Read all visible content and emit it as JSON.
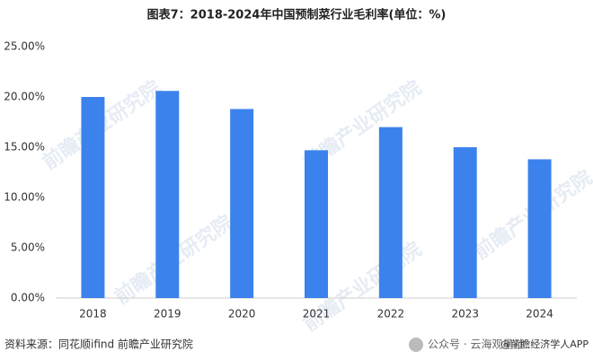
{
  "chart_data": {
    "type": "bar",
    "title": "图表7：2018-2024年中国预制菜行业毛利率(单位：%)",
    "categories": [
      "2018",
      "2019",
      "2020",
      "2021",
      "2022",
      "2023",
      "2024"
    ],
    "values": [
      20.0,
      20.6,
      18.8,
      14.7,
      17.0,
      15.0,
      13.8
    ],
    "color": "#3b82ec",
    "ylim": [
      0,
      25
    ],
    "yticks": [
      {
        "value": 0,
        "label": "0.00%"
      },
      {
        "value": 5,
        "label": "5.00%"
      },
      {
        "value": 10,
        "label": "10.00%"
      },
      {
        "value": 15,
        "label": "15.00%"
      },
      {
        "value": 20,
        "label": "20.00%"
      },
      {
        "value": 25,
        "label": "25.00%"
      }
    ],
    "grid": false,
    "source": "资料来源：同花顺ifind 前瞻产业研究院",
    "watermark": "前瞻产业研究院",
    "footer": "公众号 · 云海观星社",
    "footer_account": "@前瞻经济学人APP"
  }
}
